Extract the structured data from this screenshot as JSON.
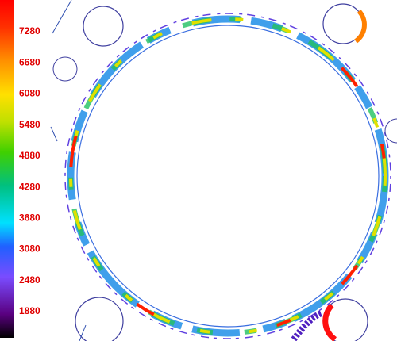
{
  "colorbar": {
    "ticks": [
      7280,
      6680,
      6080,
      5480,
      4880,
      4280,
      3680,
      3080,
      2480,
      1880
    ]
  }
}
